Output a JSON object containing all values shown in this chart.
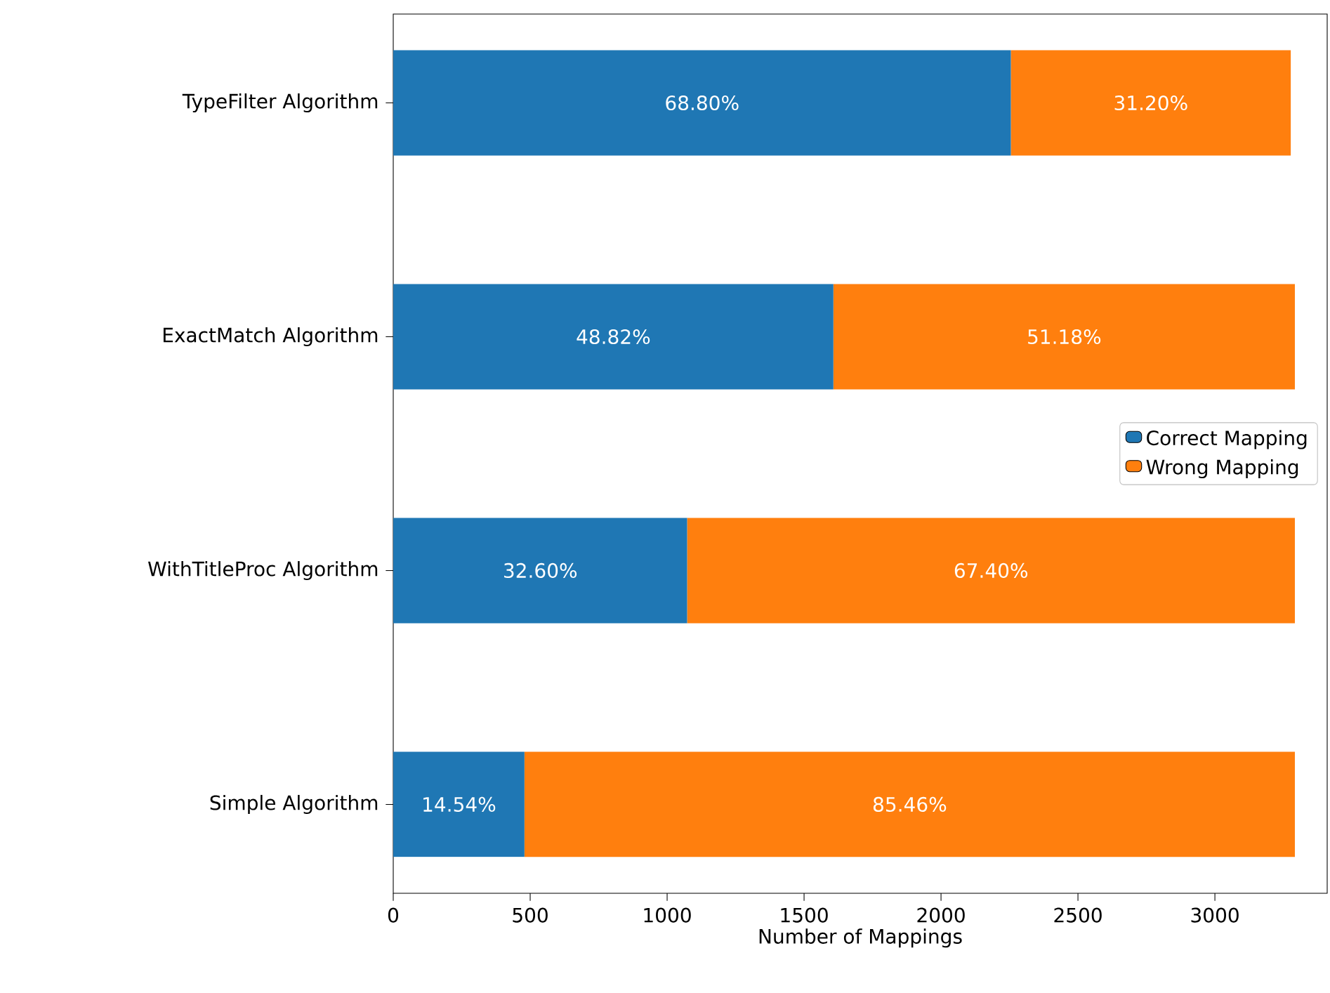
{
  "chart_data": {
    "type": "bar",
    "orientation": "horizontal",
    "stacked": true,
    "xlabel": "Number of Mappings",
    "categories": [
      "TypeFilter Algorithm",
      "ExactMatch Algorithm",
      "WithTitleProc Algorithm",
      "Simple Algorithm"
    ],
    "series": [
      {
        "name": "Correct Mapping",
        "color": "#1f77b4",
        "values": [
          2255,
          1607,
          1073,
          479
        ]
      },
      {
        "name": "Wrong Mapping",
        "color": "#ff7f0e",
        "values": [
          1022,
          1685,
          2219,
          2813
        ]
      }
    ],
    "annotations": [
      "68.80%",
      "48.82%",
      "32.60%",
      "14.54%",
      "31.20%",
      "51.18%",
      "67.40%",
      "85.46%"
    ],
    "xlim": [
      0,
      3410
    ],
    "xticks": [
      0,
      500,
      1000,
      1500,
      2000,
      2500,
      3000
    ],
    "legend": "center right"
  }
}
